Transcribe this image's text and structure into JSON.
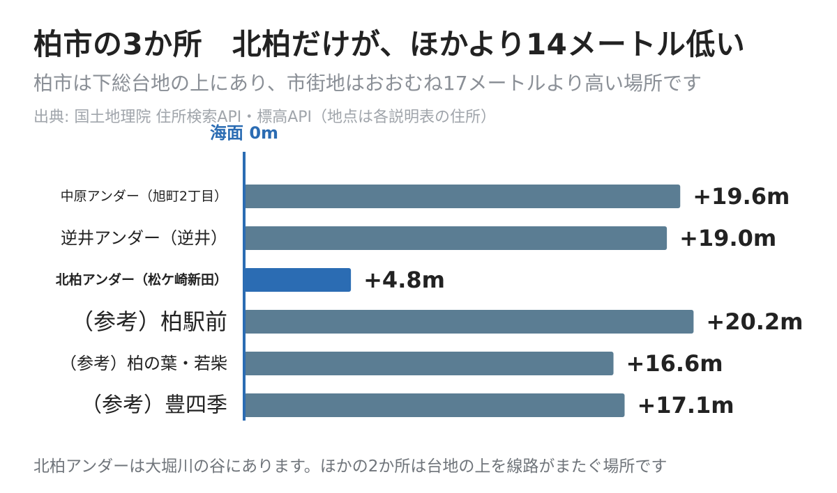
{
  "header": {
    "title": "柏市の3か所　北柏だけが、ほかより14メートル低い",
    "subtitle": "柏市は下総台地の上にあり、市街地はおおむね17メートルより高い場所です",
    "source": "出典: 国土地理院 住所検索API・標高API（地点は各説明表の住所）"
  },
  "footnote": "北柏アンダーは大堀川の谷にあります。ほかの2か所は台地の上を線路がまたぐ場所です",
  "colors": {
    "bar_default": "#5b7d93",
    "bar_highlight": "#2b6cb3",
    "baseline": "#2b6cb3",
    "label": "#222222",
    "value": "#222222"
  },
  "chart_data": {
    "type": "bar",
    "orientation": "horizontal",
    "baseline_label": "海面 0m",
    "categories": [
      "中原アンダー（旭町2丁目）",
      "逆井アンダー（逆井）",
      "北柏アンダー（松ケ崎新田）",
      "（参考）柏駅前",
      "（参考）柏の葉・若柴",
      "（参考）豊四季"
    ],
    "values": [
      19.6,
      19.0,
      4.8,
      20.2,
      16.6,
      17.1
    ],
    "value_labels": [
      "+19.6m",
      "+19.0m",
      "+4.8m",
      "+20.2m",
      "+16.6m",
      "+17.1m"
    ],
    "highlight_index": 2,
    "xlim": [
      0,
      21
    ],
    "unit": "m"
  }
}
